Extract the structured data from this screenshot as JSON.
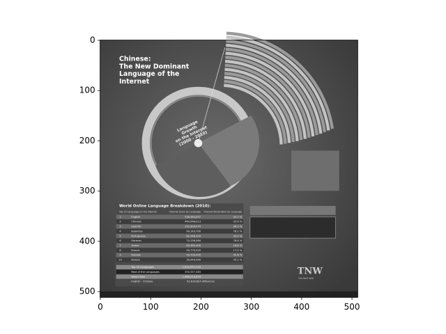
{
  "chart_data": {
    "type": "image",
    "xlim": [
      -0.5,
      511.5
    ],
    "ylim": [
      511.5,
      -0.5
    ],
    "xticks": [
      0,
      100,
      200,
      300,
      400,
      500
    ],
    "yticks": [
      0,
      100,
      200,
      300,
      400,
      500
    ],
    "image": {
      "title": [
        "Chinese:",
        "The New Dominant",
        "Language of the",
        "Internet"
      ],
      "ring_label": [
        "Language",
        "Growth",
        "on the Internet",
        "(2000 - 2010)"
      ],
      "table_title": "World Online Language Breakdown (2010):",
      "headers": [
        "Top 10 Languages in the Internet",
        "Internet Users by Language",
        "Internet Penetration by Language"
      ],
      "rows": [
        [
          "1",
          "English",
          "536,564,837",
          "42.0 %"
        ],
        [
          "2",
          "Chinese",
          "444,948,013",
          "32.6 %"
        ],
        [
          "3",
          "Spanish",
          "153,309,074",
          "36.5 %"
        ],
        [
          "4",
          "Japanese",
          "99,143,700",
          "78.2 %"
        ],
        [
          "5",
          "Portuguese",
          "82,548,200",
          "33.0 %"
        ],
        [
          "6",
          "German",
          "75,158,584",
          "78.6 %"
        ],
        [
          "7",
          "Arabic",
          "65,365,400",
          "18.8 %"
        ],
        [
          "8",
          "French",
          "59,779,525",
          "17.2 %"
        ],
        [
          "9",
          "Russian",
          "59,700,000",
          "42.8 %"
        ],
        [
          "10",
          "Korean",
          "39,440,000",
          "55.2 %"
        ]
      ],
      "summary": [
        [
          "Top 10 Languages",
          "1,615,957,333"
        ],
        [
          "Rest of the Languages",
          "350,557,483"
        ],
        [
          "World Total",
          "1,966,514,816"
        ],
        [
          "English - Chinese",
          "91,616,824 difference"
        ]
      ],
      "logo": "TNW",
      "logo_sub": "THE NEXT WEB"
    }
  }
}
